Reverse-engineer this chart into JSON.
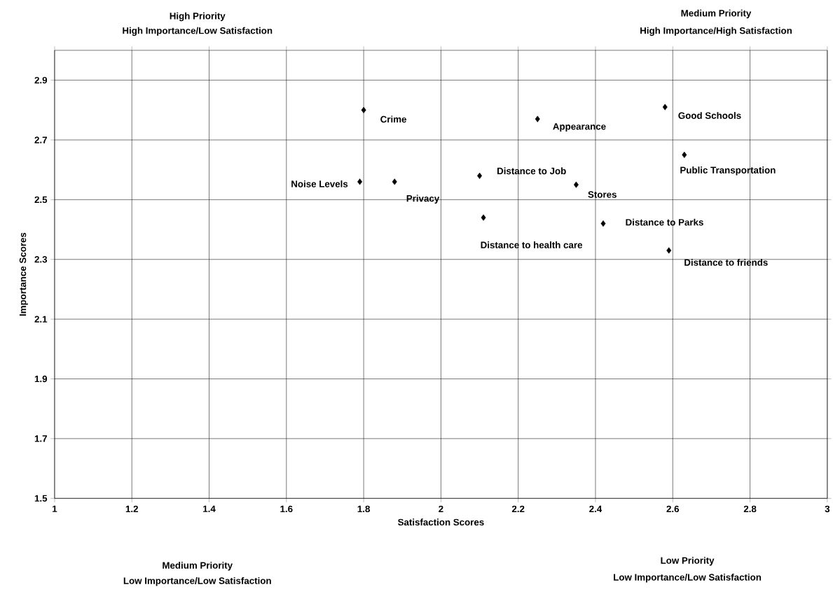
{
  "chart_data": {
    "type": "scatter",
    "xlabel": "Satisfaction Scores",
    "ylabel": "Importance Scores",
    "x": [
      1.8,
      2.25,
      2.58,
      2.63,
      2.1,
      1.79,
      1.88,
      2.35,
      2.11,
      2.42,
      2.59
    ],
    "values": [
      2.8,
      2.77,
      2.81,
      2.65,
      2.58,
      2.56,
      2.56,
      2.55,
      2.44,
      2.42,
      2.33
    ],
    "color": "#000000",
    "marker": "diamond",
    "grid": true,
    "xlim": [
      1,
      3
    ],
    "ylim": [
      1.5,
      3.0
    ],
    "xticks": [
      1,
      1.2,
      1.4,
      1.6,
      1.8,
      2,
      2.2,
      2.4,
      2.6,
      2.8,
      3
    ],
    "yticks": [
      1.5,
      1.7,
      1.9,
      2.1,
      2.3,
      2.5,
      2.7,
      2.9
    ],
    "annotations": [
      {
        "text": "Crime",
        "x": 1.8,
        "y": 2.8
      },
      {
        "text": "Appearance",
        "x": 2.25,
        "y": 2.77
      },
      {
        "text": "Good Schools",
        "x": 2.58,
        "y": 2.81
      },
      {
        "text": "Public Transportation",
        "x": 2.63,
        "y": 2.65
      },
      {
        "text": "Distance to Job",
        "x": 2.1,
        "y": 2.58
      },
      {
        "text": "Noise Levels",
        "x": 1.79,
        "y": 2.56
      },
      {
        "text": "Privacy",
        "x": 1.88,
        "y": 2.56
      },
      {
        "text": "Stores",
        "x": 2.35,
        "y": 2.55
      },
      {
        "text": "Distance to health care",
        "x": 2.11,
        "y": 2.44
      },
      {
        "text": "Distance to Parks",
        "x": 2.42,
        "y": 2.42
      },
      {
        "text": "Distance to friends",
        "x": 2.59,
        "y": 2.33
      },
      "High Priority",
      "High Importance/Low Satisfaction",
      "Medium Priority",
      "High Importance/High Satisfaction",
      "Medium Priority",
      "Low Importance/Low Satisfaction",
      "Low Priority",
      "Low Importance/Low Satisfaction"
    ]
  }
}
